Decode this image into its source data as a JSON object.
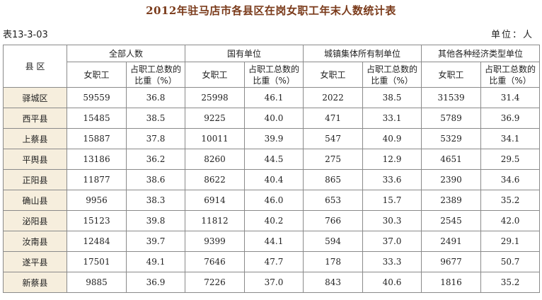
{
  "title": "2012年驻马店市各县区在岗女职工年末人数统计表",
  "table_no": "表13-3-03",
  "unit": "单位：人",
  "header": {
    "region": "县 区",
    "groups": [
      "全部人数",
      "国有单位",
      "城镇集体所有制单位",
      "其他各种经济类型单位"
    ],
    "female_workers": "女职工",
    "share_line1": "占职工总数的",
    "share_line2": "比重（%）"
  },
  "rows": [
    {
      "county": "驿城区",
      "v": [
        "59559",
        "36.8",
        "25998",
        "46.1",
        "2022",
        "38.5",
        "31539",
        "31.4"
      ]
    },
    {
      "county": "西平县",
      "v": [
        "15485",
        "38.5",
        "9225",
        "40.0",
        "471",
        "33.1",
        "5789",
        "36.9"
      ]
    },
    {
      "county": "上蔡县",
      "v": [
        "15887",
        "37.8",
        "10011",
        "39.9",
        "547",
        "40.9",
        "5329",
        "34.1"
      ]
    },
    {
      "county": "平舆县",
      "v": [
        "13186",
        "36.2",
        "8260",
        "44.5",
        "275",
        "12.9",
        "4651",
        "29.5"
      ]
    },
    {
      "county": "正阳县",
      "v": [
        "11877",
        "38.6",
        "8622",
        "40.4",
        "865",
        "33.6",
        "2390",
        "34.6"
      ]
    },
    {
      "county": "确山县",
      "v": [
        "9956",
        "38.3",
        "6914",
        "46.0",
        "653",
        "15.7",
        "2389",
        "35.2"
      ]
    },
    {
      "county": "泌阳县",
      "v": [
        "15123",
        "39.8",
        "11812",
        "40.2",
        "766",
        "30.3",
        "2545",
        "42.0"
      ]
    },
    {
      "county": "汝南县",
      "v": [
        "12484",
        "39.7",
        "9399",
        "44.1",
        "594",
        "37.0",
        "2491",
        "29.1"
      ]
    },
    {
      "county": "遂平县",
      "v": [
        "17501",
        "49.1",
        "7646",
        "47.7",
        "178",
        "33.3",
        "9677",
        "50.7"
      ]
    },
    {
      "county": "新蔡县",
      "v": [
        "9885",
        "36.9",
        "7226",
        "37.0",
        "843",
        "40.6",
        "1816",
        "35.2"
      ]
    }
  ]
}
